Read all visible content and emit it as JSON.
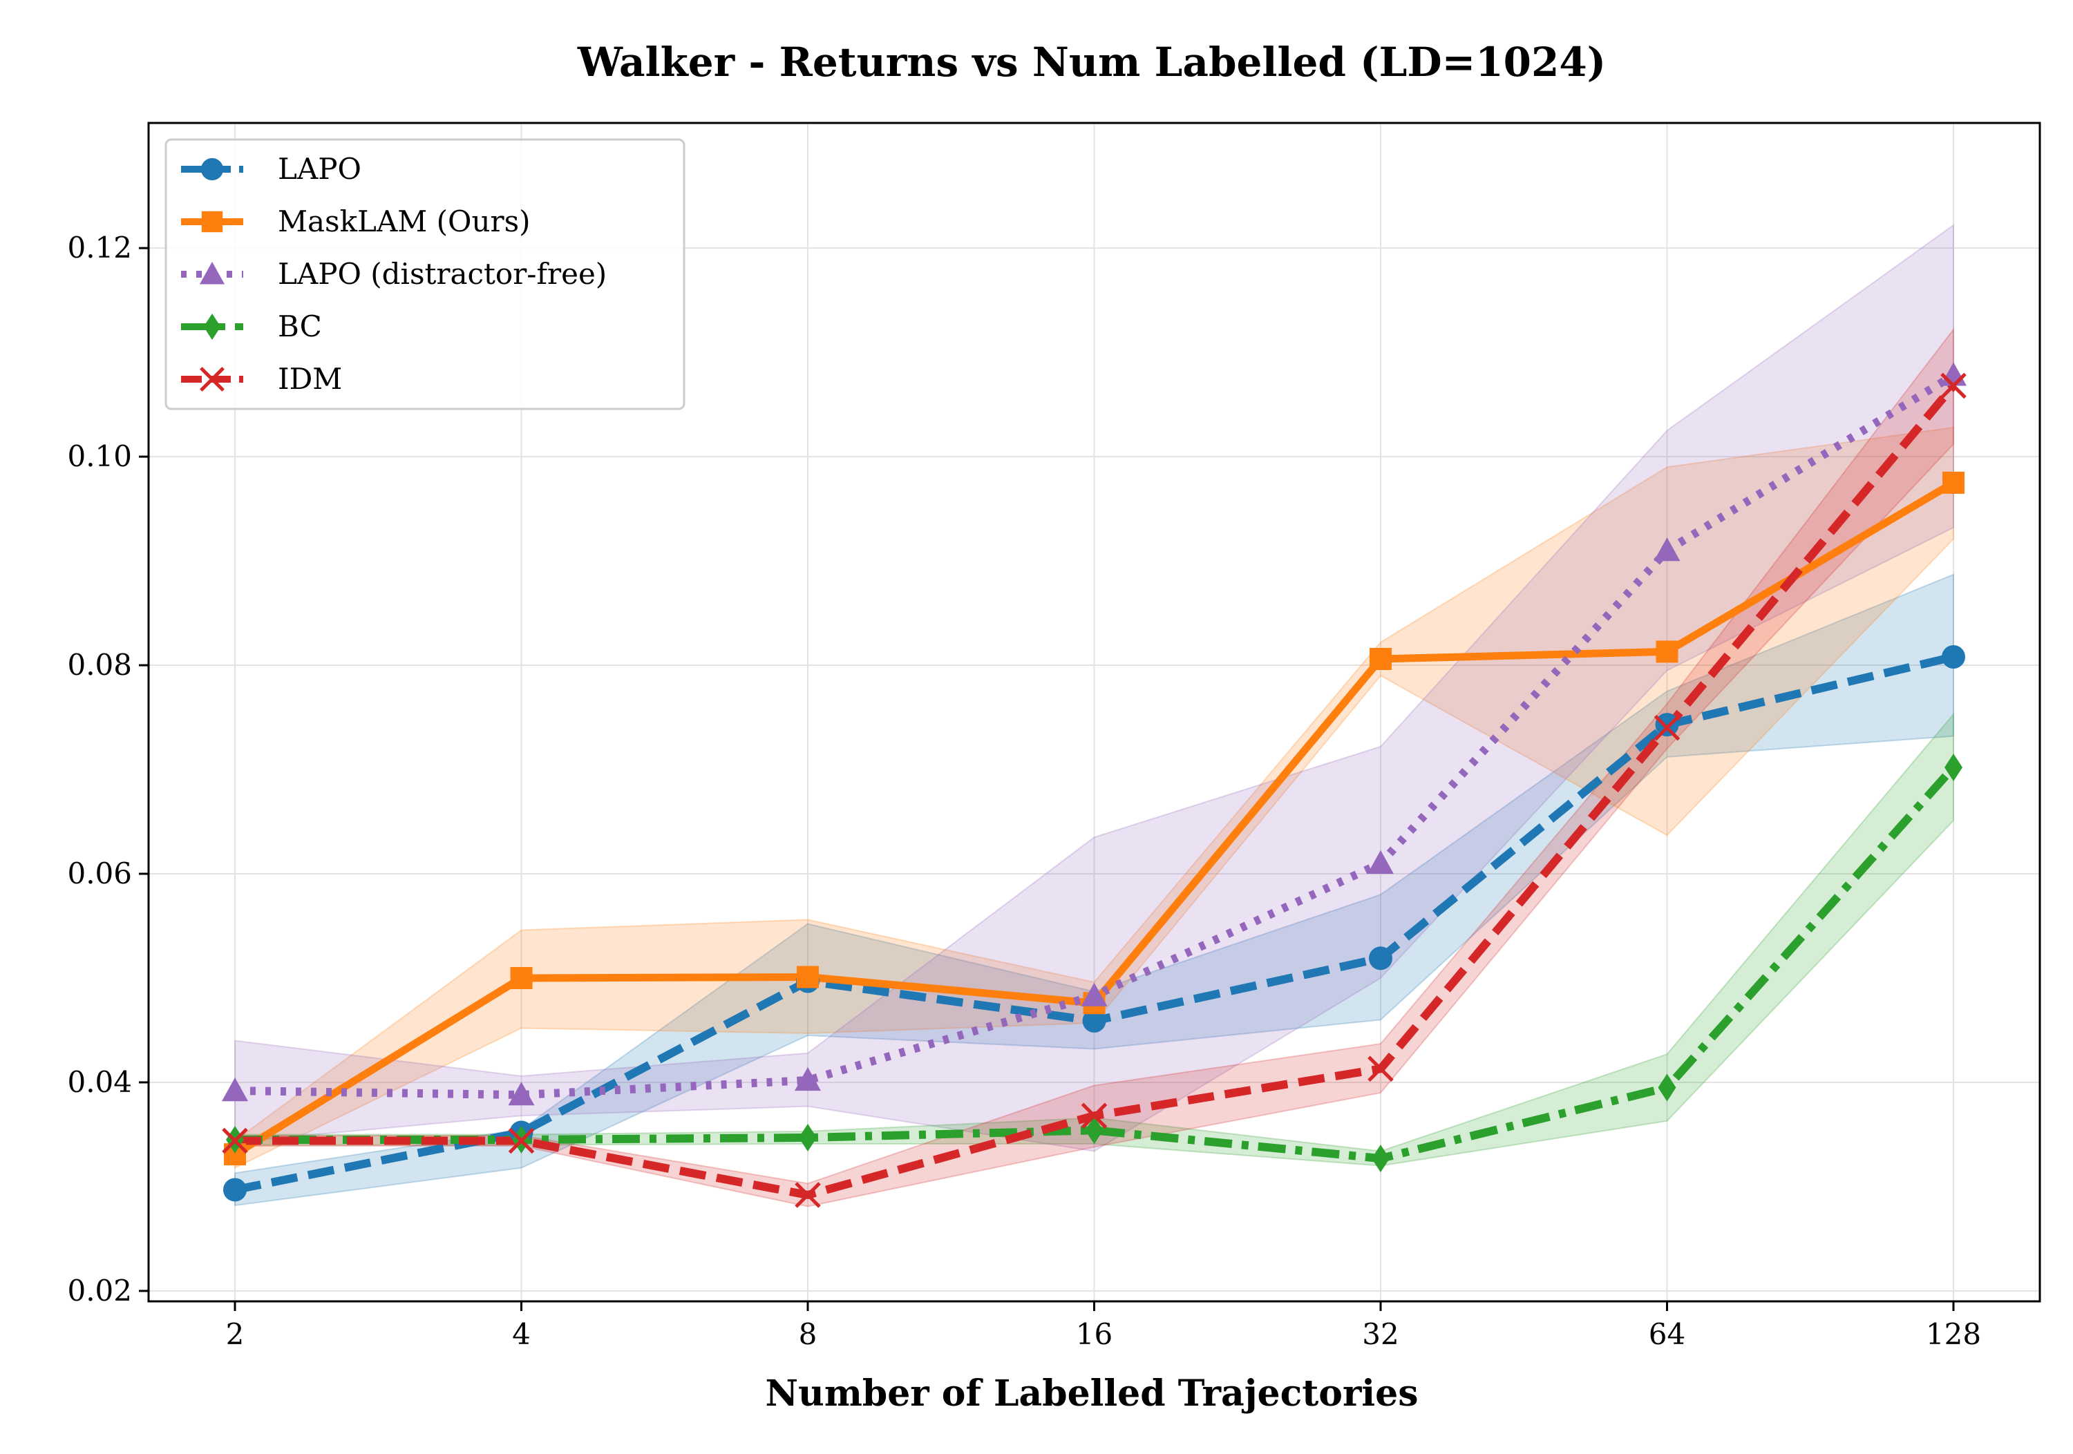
{
  "chart_data": {
    "type": "line",
    "title": "Walker - Returns vs Num Labelled (LD=1024)",
    "xlabel": "Number of Labelled Trajectories",
    "ylabel": "",
    "x": [
      2,
      4,
      8,
      16,
      32,
      64,
      128
    ],
    "x_tick_labels": [
      "2",
      "4",
      "8",
      "16",
      "32",
      "64",
      "128"
    ],
    "x_scale": "log2",
    "ylim": [
      0.019,
      0.132
    ],
    "y_ticks": [
      0.02,
      0.04,
      0.06,
      0.08,
      0.1,
      0.12
    ],
    "y_tick_labels": [
      "0.02",
      "0.04",
      "0.06",
      "0.08",
      "0.10",
      "0.12"
    ],
    "grid": true,
    "legend_position": "top-left",
    "series": [
      {
        "name": "LAPO",
        "color": "#1f77b4",
        "marker": "circle",
        "linestyle": "dashed",
        "values": [
          0.0297,
          0.0352,
          0.0497,
          0.0459,
          0.0519,
          0.0743,
          0.0808
        ],
        "lower": [
          0.0282,
          0.0318,
          0.0445,
          0.0432,
          0.046,
          0.0712,
          0.0732
        ],
        "upper": [
          0.0313,
          0.0355,
          0.0552,
          0.0487,
          0.058,
          0.0775,
          0.0887
        ]
      },
      {
        "name": "MaskLAM (Ours)",
        "color": "#ff7f0e",
        "marker": "square",
        "linestyle": "solid",
        "values": [
          0.0331,
          0.05,
          0.0501,
          0.0476,
          0.0806,
          0.0813,
          0.0975
        ],
        "lower": [
          0.0318,
          0.0452,
          0.0447,
          0.0457,
          0.079,
          0.0637,
          0.0921
        ],
        "upper": [
          0.0344,
          0.0546,
          0.0556,
          0.0496,
          0.0822,
          0.099,
          0.1028
        ]
      },
      {
        "name": "LAPO (distractor-free)",
        "color": "#9467bd",
        "marker": "triangle",
        "linestyle": "dotted",
        "values": [
          0.0392,
          0.0388,
          0.0402,
          0.0483,
          0.061,
          0.091,
          0.1078
        ],
        "lower": [
          0.0343,
          0.0368,
          0.0377,
          0.0334,
          0.05,
          0.0795,
          0.0932
        ],
        "upper": [
          0.044,
          0.0406,
          0.0428,
          0.0635,
          0.0722,
          0.1025,
          0.1222
        ]
      },
      {
        "name": "BC",
        "color": "#2ca02c",
        "marker": "diamond",
        "linestyle": "dashdot",
        "values": [
          0.0345,
          0.0345,
          0.0347,
          0.0354,
          0.0327,
          0.0395,
          0.0702
        ],
        "lower": [
          0.034,
          0.034,
          0.0341,
          0.0341,
          0.032,
          0.0363,
          0.0651
        ],
        "upper": [
          0.035,
          0.035,
          0.0353,
          0.0366,
          0.0334,
          0.0427,
          0.0753
        ]
      },
      {
        "name": "IDM",
        "color": "#d62728",
        "marker": "x",
        "linestyle": "dashed",
        "values": [
          0.0344,
          0.0344,
          0.0292,
          0.0368,
          0.0413,
          0.074,
          0.1068
        ],
        "lower": [
          0.0339,
          0.0339,
          0.0281,
          0.0338,
          0.039,
          0.072,
          0.1012
        ],
        "upper": [
          0.0349,
          0.0349,
          0.0303,
          0.0397,
          0.0437,
          0.0763,
          0.1122
        ]
      }
    ]
  }
}
